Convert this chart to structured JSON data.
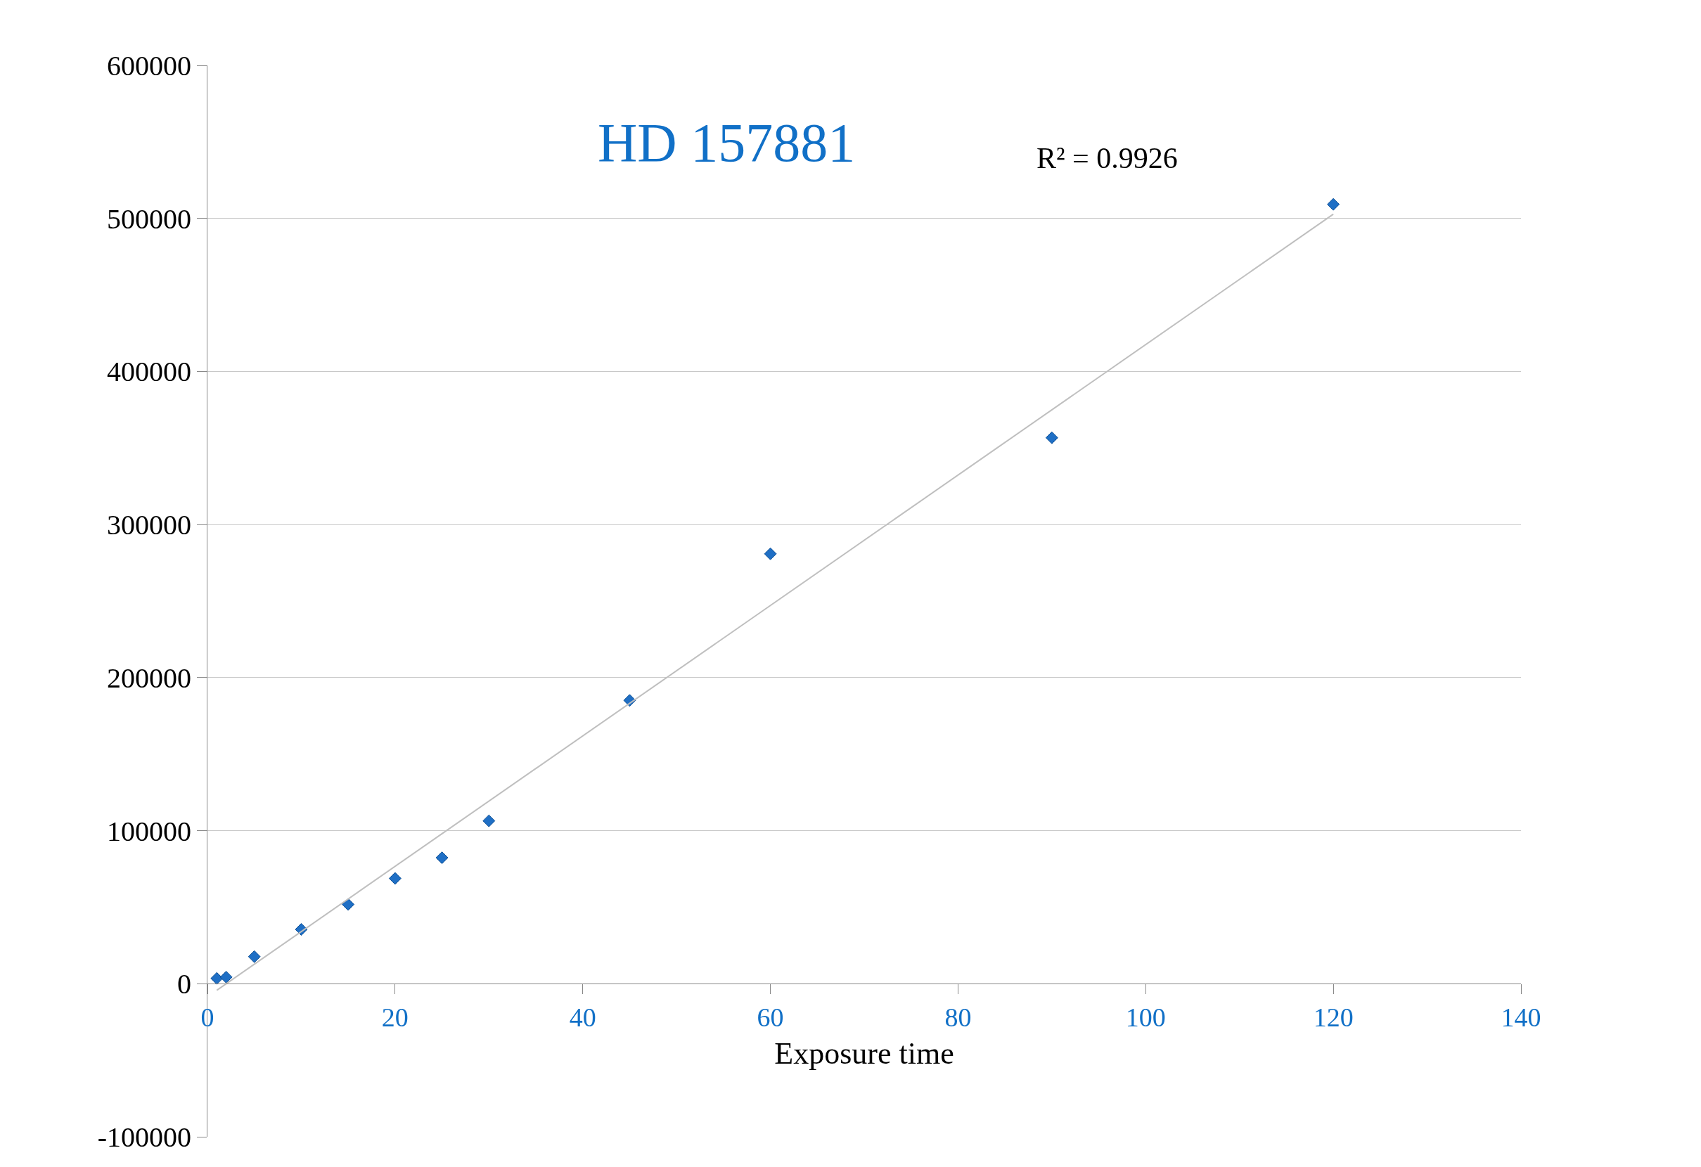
{
  "chart_data": {
    "type": "scatter",
    "title": "HD 157881",
    "xlabel": "Exposure time",
    "x": [
      1,
      2,
      5,
      10,
      15,
      20,
      25,
      30,
      45,
      60,
      90,
      120
    ],
    "series": [
      {
        "color": "#1f6fc5",
        "marker": "diamond",
        "values": [
          3500,
          4300,
          17700,
          35500,
          51800,
          68800,
          82300,
          106400,
          185100,
          280900,
          356700,
          509200
        ]
      },
      {
        "type": "line",
        "color": "#bfbfbf",
        "x": [
          1,
          120
        ],
        "values": [
          -4300,
          502800
        ]
      }
    ],
    "annotations": [
      "R² = 0.9926"
    ],
    "xlim": [
      0,
      140
    ],
    "xticks": [
      0,
      20,
      40,
      60,
      80,
      100,
      120,
      140
    ],
    "ylim": [
      -100000,
      600000
    ],
    "yticks": [
      -100000,
      0,
      100000,
      200000,
      300000,
      400000,
      500000,
      600000
    ],
    "grid": "y"
  }
}
